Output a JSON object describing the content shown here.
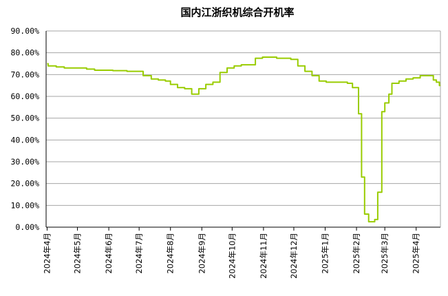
{
  "chart_data": {
    "type": "line",
    "title": "国内江浙织机综合开机率",
    "xlabel": "",
    "ylabel": "",
    "ylim": [
      0,
      90
    ],
    "y_ticks": [
      "0.00%",
      "10.00%",
      "20.00%",
      "30.00%",
      "40.00%",
      "50.00%",
      "60.00%",
      "70.00%",
      "80.00%",
      "90.00%"
    ],
    "x_ticks": [
      "2024年4月",
      "2024年5月",
      "2024年6月",
      "2024年7月",
      "2024年8月",
      "2024年9月",
      "2024年10月",
      "2024年11月",
      "2024年12月",
      "2025年1月",
      "2025年2月",
      "2025年3月",
      "2025年4月"
    ],
    "grid": "horizontal",
    "line_color": "#99cc00",
    "series": [
      {
        "name": "",
        "points": [
          [
            "2024-04-01",
            75.0
          ],
          [
            "2024-04-02",
            74.0
          ],
          [
            "2024-04-10",
            73.5
          ],
          [
            "2024-04-18",
            73.0
          ],
          [
            "2024-05-02",
            73.0
          ],
          [
            "2024-05-10",
            72.5
          ],
          [
            "2024-05-18",
            72.0
          ],
          [
            "2024-05-28",
            72.0
          ],
          [
            "2024-06-01",
            72.0
          ],
          [
            "2024-06-05",
            71.8
          ],
          [
            "2024-06-12",
            71.8
          ],
          [
            "2024-06-19",
            71.5
          ],
          [
            "2024-06-28",
            71.5
          ],
          [
            "2024-07-01",
            71.5
          ],
          [
            "2024-07-05",
            69.5
          ],
          [
            "2024-07-12",
            69.5
          ],
          [
            "2024-07-13",
            68.0
          ],
          [
            "2024-07-20",
            67.5
          ],
          [
            "2024-07-27",
            67.0
          ],
          [
            "2024-08-01",
            65.5
          ],
          [
            "2024-08-08",
            64.0
          ],
          [
            "2024-08-15",
            63.5
          ],
          [
            "2024-08-22",
            61.0
          ],
          [
            "2024-08-29",
            63.5
          ],
          [
            "2024-09-05",
            65.5
          ],
          [
            "2024-09-12",
            66.5
          ],
          [
            "2024-09-19",
            71.0
          ],
          [
            "2024-09-26",
            73.0
          ],
          [
            "2024-10-03",
            74.0
          ],
          [
            "2024-10-10",
            74.5
          ],
          [
            "2024-10-17",
            74.5
          ],
          [
            "2024-10-24",
            77.5
          ],
          [
            "2024-10-31",
            78.0
          ],
          [
            "2024-11-07",
            78.0
          ],
          [
            "2024-11-14",
            77.5
          ],
          [
            "2024-11-21",
            77.5
          ],
          [
            "2024-11-28",
            77.0
          ],
          [
            "2024-12-05",
            74.0
          ],
          [
            "2024-12-12",
            71.5
          ],
          [
            "2024-12-19",
            69.5
          ],
          [
            "2024-12-26",
            67.0
          ],
          [
            "2025-01-02",
            66.5
          ],
          [
            "2025-01-09",
            66.5
          ],
          [
            "2025-01-16",
            66.5
          ],
          [
            "2025-01-23",
            66.0
          ],
          [
            "2025-01-28",
            64.0
          ],
          [
            "2025-02-03",
            52.0
          ],
          [
            "2025-02-06",
            23.0
          ],
          [
            "2025-02-09",
            6.0
          ],
          [
            "2025-02-13",
            2.5
          ],
          [
            "2025-02-16",
            2.5
          ],
          [
            "2025-02-19",
            3.5
          ],
          [
            "2025-02-22",
            16.0
          ],
          [
            "2025-02-26",
            53.0
          ],
          [
            "2025-03-01",
            57.0
          ],
          [
            "2025-03-05",
            61.0
          ],
          [
            "2025-03-08",
            66.0
          ],
          [
            "2025-03-15",
            67.0
          ],
          [
            "2025-03-22",
            68.0
          ],
          [
            "2025-03-29",
            68.5
          ],
          [
            "2025-04-05",
            69.5
          ],
          [
            "2025-04-12",
            69.5
          ],
          [
            "2025-04-18",
            67.5
          ],
          [
            "2025-04-21",
            66.5
          ],
          [
            "2025-04-24",
            65.0
          ]
        ]
      }
    ]
  }
}
